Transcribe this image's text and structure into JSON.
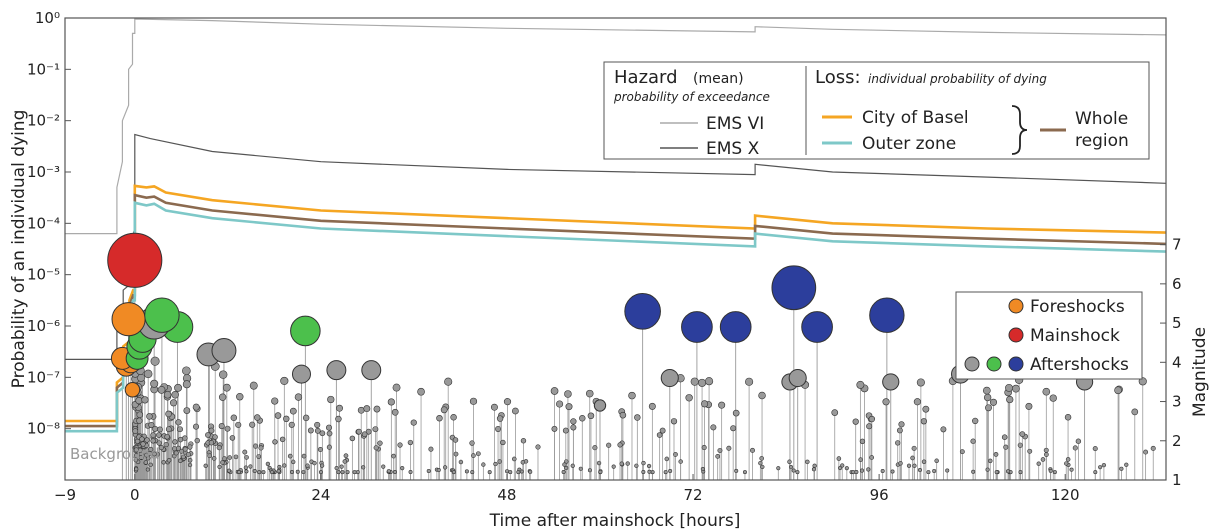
{
  "chart_data": {
    "type": "line",
    "xlabel": "Time after mainshock [hours]",
    "ylabel": "Probability of an individual dying",
    "y2label": "Magnitude",
    "xlim": [
      -9,
      133
    ],
    "ylim_log10": [
      -9,
      0
    ],
    "y2lim": [
      1,
      7.5
    ],
    "xticks": [
      "−9",
      "0",
      "24",
      "48",
      "72",
      "96",
      "120"
    ],
    "xtick_values": [
      -9,
      0,
      24,
      48,
      72,
      96,
      120
    ],
    "yticks": [
      "10⁻⁸",
      "10⁻⁷",
      "10⁻⁶",
      "10⁻⁵",
      "10⁻⁴",
      "10⁻³",
      "10⁻²",
      "10⁻¹",
      "10⁰"
    ],
    "yticks_exp": [
      -8,
      -7,
      -6,
      -5,
      -4,
      -3,
      -2,
      -1,
      0
    ],
    "y2ticks": [
      "1",
      "2",
      "3",
      "4",
      "5",
      "6",
      "7"
    ],
    "background_label": "Background",
    "colors": {
      "ems6": "#aaaaaa",
      "ems10": "#555555",
      "basel": "#f5a623",
      "outer": "#7ec8c8",
      "whole": "#8b6a4f",
      "foreshock": "#f08a24",
      "mainshock": "#d62a2a",
      "aftershock_gray": "#999999",
      "aftershock_green": "#4cc04c",
      "aftershock_blue": "#2c3e9c"
    },
    "series": [
      {
        "name": "EMS VI",
        "key": "ems6",
        "points": [
          [
            -9,
            -4.2
          ],
          [
            -2.3,
            -4.2
          ],
          [
            -2.3,
            -3.3
          ],
          [
            -1.6,
            -2.8
          ],
          [
            -1.6,
            -2.0
          ],
          [
            -0.8,
            -1.7
          ],
          [
            -0.8,
            -1.0
          ],
          [
            -0.3,
            -0.9
          ],
          [
            -0.3,
            -0.3
          ],
          [
            0,
            -0.3
          ],
          [
            0,
            -0.02
          ],
          [
            10,
            -0.05
          ],
          [
            24,
            -0.12
          ],
          [
            48,
            -0.2
          ],
          [
            80,
            -0.27
          ],
          [
            80.01,
            -0.17
          ],
          [
            90,
            -0.22
          ],
          [
            110,
            -0.28
          ],
          [
            133,
            -0.33
          ]
        ]
      },
      {
        "name": "EMS X",
        "key": "ems10",
        "points": [
          [
            -9,
            -6.65
          ],
          [
            -2.3,
            -6.65
          ],
          [
            -2.3,
            -6.1
          ],
          [
            -1.5,
            -6.0
          ],
          [
            -1.5,
            -5.3
          ],
          [
            -0.7,
            -5.2
          ],
          [
            -0.7,
            -4.4
          ],
          [
            -0.2,
            -4.2
          ],
          [
            0,
            -4.1
          ],
          [
            0,
            -2.27
          ],
          [
            2,
            -2.35
          ],
          [
            10,
            -2.6
          ],
          [
            24,
            -2.8
          ],
          [
            48,
            -2.95
          ],
          [
            80,
            -3.05
          ],
          [
            80.01,
            -2.85
          ],
          [
            90,
            -3.0
          ],
          [
            110,
            -3.1
          ],
          [
            133,
            -3.22
          ]
        ]
      },
      {
        "name": "City of Basel",
        "key": "basel",
        "points": [
          [
            -9,
            -7.85
          ],
          [
            -2.3,
            -7.85
          ],
          [
            -2.3,
            -7.1
          ],
          [
            -1.5,
            -7.0
          ],
          [
            -1.5,
            -6.4
          ],
          [
            -0.7,
            -6.3
          ],
          [
            -0.7,
            -5.5
          ],
          [
            -0.2,
            -5.3
          ],
          [
            0,
            -5.3
          ],
          [
            0,
            -3.27
          ],
          [
            1.5,
            -3.3
          ],
          [
            2.5,
            -3.28
          ],
          [
            4,
            -3.4
          ],
          [
            10,
            -3.55
          ],
          [
            24,
            -3.75
          ],
          [
            48,
            -3.9
          ],
          [
            80,
            -4.1
          ],
          [
            80.01,
            -3.85
          ],
          [
            90,
            -4.0
          ],
          [
            110,
            -4.1
          ],
          [
            133,
            -4.18
          ]
        ]
      },
      {
        "name": "Whole region",
        "key": "whole",
        "points": [
          [
            -9,
            -7.95
          ],
          [
            -2.3,
            -7.95
          ],
          [
            -2.3,
            -7.2
          ],
          [
            -1.5,
            -7.1
          ],
          [
            -1.5,
            -6.5
          ],
          [
            -0.7,
            -6.4
          ],
          [
            -0.7,
            -5.6
          ],
          [
            -0.2,
            -5.4
          ],
          [
            0,
            -5.4
          ],
          [
            0,
            -3.45
          ],
          [
            1.5,
            -3.5
          ],
          [
            2.5,
            -3.48
          ],
          [
            4,
            -3.6
          ],
          [
            10,
            -3.75
          ],
          [
            24,
            -3.95
          ],
          [
            48,
            -4.1
          ],
          [
            80,
            -4.3
          ],
          [
            80.01,
            -4.05
          ],
          [
            90,
            -4.2
          ],
          [
            110,
            -4.3
          ],
          [
            133,
            -4.4
          ]
        ]
      },
      {
        "name": "Outer zone",
        "key": "outer",
        "points": [
          [
            -9,
            -8.05
          ],
          [
            -2.3,
            -8.05
          ],
          [
            -2.3,
            -7.3
          ],
          [
            -1.5,
            -7.2
          ],
          [
            -1.5,
            -6.6
          ],
          [
            -0.7,
            -6.5
          ],
          [
            -0.7,
            -5.7
          ],
          [
            -0.2,
            -5.5
          ],
          [
            0,
            -5.5
          ],
          [
            0,
            -3.6
          ],
          [
            1.5,
            -3.65
          ],
          [
            2.5,
            -3.62
          ],
          [
            4,
            -3.75
          ],
          [
            10,
            -3.9
          ],
          [
            24,
            -4.1
          ],
          [
            48,
            -4.25
          ],
          [
            80,
            -4.45
          ],
          [
            80.01,
            -4.2
          ],
          [
            90,
            -4.35
          ],
          [
            110,
            -4.45
          ],
          [
            133,
            -4.55
          ]
        ]
      }
    ],
    "events": [
      {
        "type": "mainshock",
        "t": 0,
        "mag": 6.6
      },
      {
        "type": "foreshock",
        "t": -0.8,
        "mag": 5.1
      },
      {
        "type": "foreshock",
        "t": -1.1,
        "mag": 3.9
      },
      {
        "type": "foreshock",
        "t": -1.6,
        "mag": 4.1
      },
      {
        "type": "foreshock",
        "t": -0.5,
        "mag": 4.0
      },
      {
        "type": "foreshock",
        "t": -0.3,
        "mag": 3.3
      },
      {
        "type": "aftershock_green",
        "t": 3.5,
        "mag": 5.2
      },
      {
        "type": "aftershock_green",
        "t": 5.5,
        "mag": 4.9
      },
      {
        "type": "aftershock_green",
        "t": 1.0,
        "mag": 4.6
      },
      {
        "type": "aftershock_green",
        "t": 0.6,
        "mag": 4.4
      },
      {
        "type": "aftershock_green",
        "t": 0.3,
        "mag": 4.1
      },
      {
        "type": "aftershock_green",
        "t": 22.0,
        "mag": 4.8
      },
      {
        "type": "aftershock_blue",
        "t": 65.5,
        "mag": 5.3
      },
      {
        "type": "aftershock_blue",
        "t": 72.5,
        "mag": 4.9
      },
      {
        "type": "aftershock_blue",
        "t": 77.5,
        "mag": 4.9
      },
      {
        "type": "aftershock_blue",
        "t": 85.0,
        "mag": 5.9
      },
      {
        "type": "aftershock_blue",
        "t": 88.0,
        "mag": 4.9
      },
      {
        "type": "aftershock_blue",
        "t": 97.0,
        "mag": 5.2
      },
      {
        "type": "aftershock_gray",
        "t": 2.5,
        "mag": 5.0
      },
      {
        "type": "aftershock_gray",
        "t": 9.5,
        "mag": 4.2
      },
      {
        "type": "aftershock_gray",
        "t": 11.5,
        "mag": 4.3
      },
      {
        "type": "aftershock_gray",
        "t": 21.5,
        "mag": 3.7
      },
      {
        "type": "aftershock_gray",
        "t": 26.0,
        "mag": 3.8
      },
      {
        "type": "aftershock_gray",
        "t": 30.5,
        "mag": 3.8
      },
      {
        "type": "aftershock_gray",
        "t": 60.0,
        "mag": 2.9
      },
      {
        "type": "aftershock_gray",
        "t": 69.0,
        "mag": 3.6
      },
      {
        "type": "aftershock_gray",
        "t": 84.5,
        "mag": 3.5
      },
      {
        "type": "aftershock_gray",
        "t": 85.5,
        "mag": 3.6
      },
      {
        "type": "aftershock_gray",
        "t": 97.5,
        "mag": 3.5
      },
      {
        "type": "aftershock_gray",
        "t": 106.5,
        "mag": 3.7
      },
      {
        "type": "aftershock_gray",
        "t": 122.5,
        "mag": 3.5
      }
    ],
    "legend_hazard": {
      "title": "Hazard",
      "title_suffix": "(mean)",
      "subtitle": "probability of exceedance",
      "items": [
        "EMS VI",
        "EMS X"
      ]
    },
    "legend_loss": {
      "title": "Loss:",
      "subtitle": "individual probability of dying",
      "items": [
        "City of Basel",
        "Outer zone"
      ],
      "brace_label_1": "Whole",
      "brace_label_2": "region"
    },
    "legend_quakes": {
      "items": [
        "Foreshocks",
        "Mainshock",
        "Aftershocks"
      ]
    }
  }
}
